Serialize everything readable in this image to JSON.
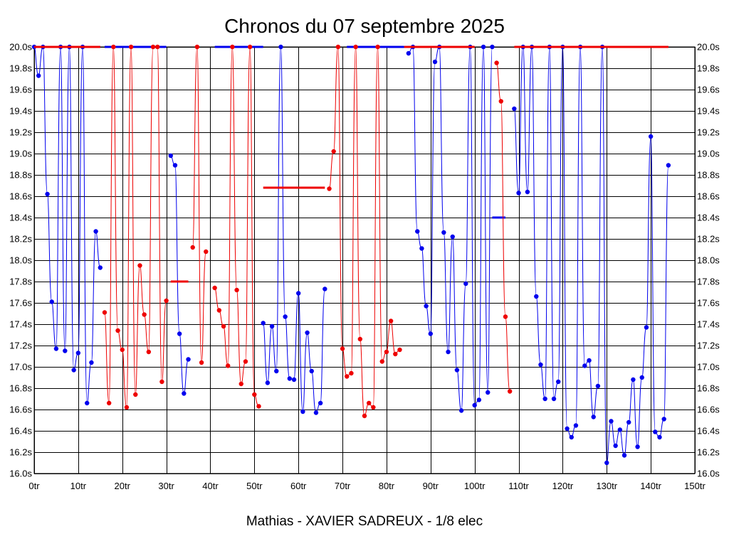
{
  "chart_data": {
    "type": "line",
    "title": "Chronos du 07 septembre 2025",
    "subtitle": "Mathias - XAVIER SADREUX - 1/8 elec",
    "xlabel": "",
    "ylabel": "",
    "xlim": [
      0,
      150
    ],
    "ylim": [
      16.0,
      20.0
    ],
    "x_ticks": [
      0,
      10,
      20,
      30,
      40,
      50,
      60,
      70,
      80,
      90,
      100,
      110,
      120,
      130,
      140,
      150
    ],
    "x_tick_labels": [
      "0tr",
      "10tr",
      "20tr",
      "30tr",
      "40tr",
      "50tr",
      "60tr",
      "70tr",
      "80tr",
      "90tr",
      "100tr",
      "110tr",
      "120tr",
      "130tr",
      "140tr",
      "150tr"
    ],
    "y_ticks": [
      16.0,
      16.2,
      16.4,
      16.6,
      16.8,
      17.0,
      17.2,
      17.4,
      17.6,
      17.8,
      18.0,
      18.2,
      18.4,
      18.6,
      18.8,
      19.0,
      19.2,
      19.4,
      19.6,
      19.8,
      20.0
    ],
    "y_tick_labels": [
      "16.0s",
      "16.2s",
      "16.4s",
      "16.6s",
      "16.8s",
      "17.0s",
      "17.2s",
      "17.4s",
      "17.6s",
      "17.8s",
      "18.0s",
      "18.2s",
      "18.4s",
      "18.6s",
      "18.8s",
      "19.0s",
      "19.2s",
      "19.4s",
      "19.6s",
      "19.8s",
      "20.0s"
    ],
    "grid": true,
    "series": [
      {
        "color": "#0000ee",
        "points": [
          [
            0,
            20.0
          ],
          [
            1,
            19.73
          ],
          [
            2,
            20.0
          ],
          [
            3,
            18.62
          ],
          [
            4,
            17.61
          ],
          [
            5,
            17.17
          ],
          [
            6,
            20.0
          ],
          [
            7,
            17.15
          ],
          [
            8,
            20.0
          ],
          [
            9,
            16.97
          ],
          [
            10,
            17.13
          ],
          [
            11,
            20.0
          ],
          [
            12,
            16.66
          ],
          [
            13,
            17.04
          ],
          [
            14,
            18.27
          ],
          [
            15,
            17.93
          ],
          [
            31,
            18.98
          ],
          [
            32,
            18.89
          ],
          [
            33,
            17.31
          ],
          [
            34,
            16.75
          ],
          [
            35,
            17.07
          ],
          [
            52,
            17.41
          ],
          [
            53,
            16.85
          ],
          [
            54,
            17.38
          ],
          [
            55,
            16.96
          ],
          [
            56,
            20.0
          ],
          [
            57,
            17.47
          ],
          [
            58,
            16.89
          ],
          [
            59,
            16.88
          ],
          [
            60,
            17.69
          ],
          [
            61,
            16.58
          ],
          [
            62,
            17.32
          ],
          [
            63,
            16.96
          ],
          [
            64,
            16.57
          ],
          [
            65,
            16.66
          ],
          [
            66,
            17.73
          ],
          [
            85,
            19.94
          ],
          [
            86,
            20.0
          ],
          [
            87,
            18.27
          ],
          [
            88,
            18.11
          ],
          [
            89,
            17.57
          ],
          [
            90,
            17.31
          ],
          [
            91,
            19.86
          ],
          [
            92,
            20.0
          ],
          [
            93,
            18.26
          ],
          [
            94,
            17.14
          ],
          [
            95,
            18.22
          ],
          [
            96,
            16.97
          ],
          [
            97,
            16.59
          ],
          [
            98,
            17.78
          ],
          [
            99,
            20.0
          ],
          [
            100,
            16.64
          ],
          [
            101,
            16.69
          ],
          [
            102,
            20.0
          ],
          [
            103,
            16.76
          ],
          [
            104,
            20.0
          ],
          [
            109,
            19.42
          ],
          [
            110,
            18.63
          ],
          [
            111,
            20.0
          ],
          [
            112,
            18.64
          ],
          [
            113,
            20.0
          ],
          [
            114,
            17.66
          ],
          [
            115,
            17.02
          ],
          [
            116,
            16.7
          ],
          [
            117,
            20.0
          ],
          [
            118,
            16.7
          ],
          [
            119,
            16.86
          ],
          [
            120,
            20.0
          ],
          [
            121,
            16.42
          ],
          [
            122,
            16.34
          ],
          [
            123,
            16.45
          ],
          [
            124,
            20.0
          ],
          [
            125,
            17.01
          ],
          [
            126,
            17.06
          ],
          [
            127,
            16.53
          ],
          [
            128,
            16.82
          ],
          [
            129,
            20.0
          ],
          [
            130,
            16.1
          ],
          [
            131,
            16.49
          ],
          [
            132,
            16.26
          ],
          [
            133,
            16.41
          ],
          [
            134,
            16.17
          ],
          [
            135,
            16.48
          ],
          [
            136,
            16.88
          ],
          [
            137,
            16.25
          ],
          [
            138,
            16.9
          ],
          [
            139,
            17.37
          ],
          [
            140,
            19.16
          ],
          [
            141,
            16.39
          ],
          [
            142,
            16.34
          ],
          [
            143,
            16.51
          ],
          [
            144,
            18.89
          ]
        ],
        "segments": [
          [
            0,
            20.0,
            15,
            20.0
          ],
          [
            16,
            20.0,
            30,
            20.0
          ],
          [
            41,
            20.0,
            52,
            20.0
          ],
          [
            71,
            20.0,
            84,
            20.0
          ],
          [
            104,
            18.4,
            107,
            18.4
          ]
        ]
      },
      {
        "color": "#ee0000",
        "points": [
          [
            16,
            17.51
          ],
          [
            17,
            16.66
          ],
          [
            18,
            20.0
          ],
          [
            19,
            17.34
          ],
          [
            20,
            17.16
          ],
          [
            21,
            16.62
          ],
          [
            22,
            20.0
          ],
          [
            23,
            16.74
          ],
          [
            24,
            17.95
          ],
          [
            25,
            17.49
          ],
          [
            26,
            17.14
          ],
          [
            27,
            20.0
          ],
          [
            28,
            20.0
          ],
          [
            29,
            16.86
          ],
          [
            30,
            17.62
          ],
          [
            36,
            18.12
          ],
          [
            37,
            20.0
          ],
          [
            38,
            17.04
          ],
          [
            39,
            18.08
          ],
          [
            41,
            17.74
          ],
          [
            42,
            17.53
          ],
          [
            43,
            17.38
          ],
          [
            44,
            17.01
          ],
          [
            45,
            20.0
          ],
          [
            46,
            17.72
          ],
          [
            47,
            16.84
          ],
          [
            48,
            17.05
          ],
          [
            49,
            20.0
          ],
          [
            50,
            16.74
          ],
          [
            51,
            16.63
          ],
          [
            67,
            18.67
          ],
          [
            68,
            19.02
          ],
          [
            69,
            20.0
          ],
          [
            70,
            17.17
          ],
          [
            71,
            16.91
          ],
          [
            72,
            16.94
          ],
          [
            73,
            20.0
          ],
          [
            74,
            17.26
          ],
          [
            75,
            16.54
          ],
          [
            76,
            16.66
          ],
          [
            77,
            16.62
          ],
          [
            78,
            20.0
          ],
          [
            79,
            17.05
          ],
          [
            80,
            17.14
          ],
          [
            81,
            17.43
          ],
          [
            82,
            17.12
          ],
          [
            83,
            17.16
          ],
          [
            105,
            19.85
          ],
          [
            106,
            19.49
          ],
          [
            107,
            17.47
          ],
          [
            108,
            16.77
          ]
        ],
        "segments": [
          [
            0,
            20.0,
            15,
            20.0
          ],
          [
            31,
            17.8,
            35,
            17.8
          ],
          [
            52,
            18.68,
            66,
            18.68
          ],
          [
            84,
            20.0,
            100,
            20.0
          ],
          [
            109,
            20.0,
            144,
            20.0
          ]
        ]
      }
    ]
  }
}
